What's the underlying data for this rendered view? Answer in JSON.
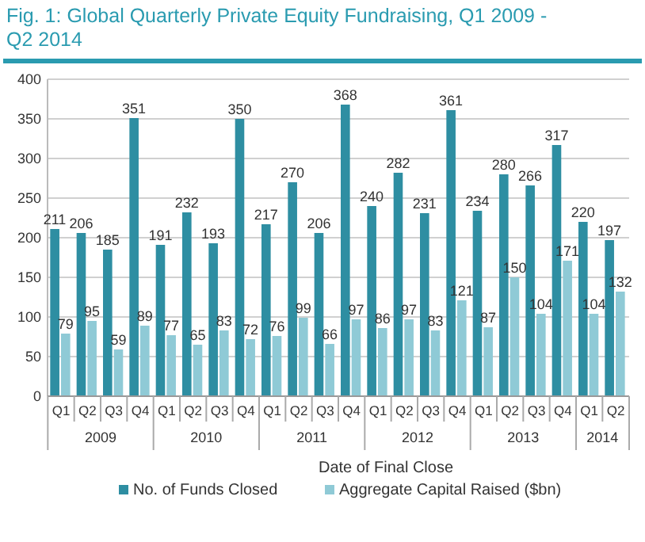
{
  "chart_data": {
    "type": "bar",
    "title": "Fig. 1: Global Quarterly Private Equity Fundraising, Q1 2009 - Q2 2014",
    "xlabel": "Date of Final Close",
    "categories": [
      "Q1",
      "Q2",
      "Q3",
      "Q4",
      "Q1",
      "Q2",
      "Q3",
      "Q4",
      "Q1",
      "Q2",
      "Q3",
      "Q4",
      "Q1",
      "Q2",
      "Q3",
      "Q4",
      "Q1",
      "Q2",
      "Q3",
      "Q4",
      "Q1",
      "Q2"
    ],
    "series": [
      {
        "name": "No. of Funds Closed",
        "color": "#2e8ea2",
        "values": [
          211,
          206,
          185,
          351,
          191,
          232,
          193,
          350,
          217,
          270,
          206,
          368,
          240,
          282,
          231,
          361,
          234,
          280,
          266,
          317,
          220,
          197
        ]
      },
      {
        "name": "Aggregate Capital Raised ($bn)",
        "color": "#8fcad6",
        "values": [
          79,
          95,
          59,
          89,
          77,
          65,
          83,
          72,
          76,
          99,
          66,
          97,
          86,
          97,
          83,
          121,
          87,
          150,
          104,
          171,
          104,
          132
        ]
      }
    ],
    "annotations": [
      "2009",
      "2010",
      "2011",
      "2012",
      "2013",
      "2014"
    ],
    "ylim": [
      0,
      400
    ],
    "yticks": [
      0,
      50,
      100,
      150,
      200,
      250,
      300,
      350,
      400
    ],
    "grid": "y",
    "legend": "bottom",
    "data_labels": true
  }
}
